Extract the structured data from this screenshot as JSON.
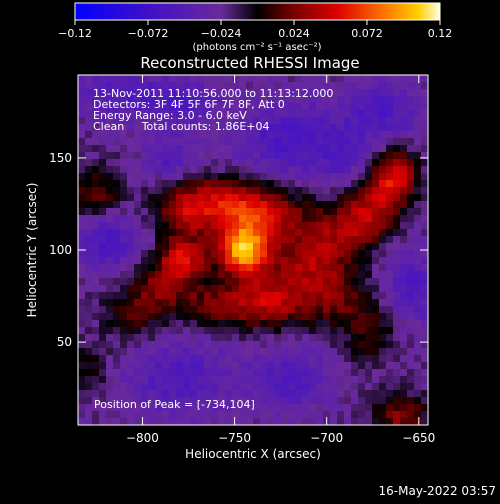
{
  "chart_data": {
    "type": "heatmap",
    "title": "Reconstructed RHESSI Image",
    "xlabel": "Heliocentric X (arcsec)",
    "ylabel": "Heliocentric Y (arcsec)",
    "xlim": [
      -835,
      -645
    ],
    "ylim": [
      5,
      195
    ],
    "xticks": [
      {
        "value": -800,
        "label": "−800"
      },
      {
        "value": -750,
        "label": "−750"
      },
      {
        "value": -700,
        "label": "−700"
      },
      {
        "value": -650,
        "label": "−650"
      }
    ],
    "yticks": [
      {
        "value": 50,
        "label": "50"
      },
      {
        "value": 100,
        "label": "100"
      },
      {
        "value": 150,
        "label": "150"
      }
    ],
    "colorbar": {
      "range": [
        -0.12,
        0.12
      ],
      "ticks": [
        {
          "value": -0.12,
          "label": "−0.12"
        },
        {
          "value": -0.072,
          "label": "−0.072"
        },
        {
          "value": -0.024,
          "label": "−0.024"
        },
        {
          "value": 0.024,
          "label": "0.024"
        },
        {
          "value": 0.072,
          "label": "0.072"
        },
        {
          "value": 0.12,
          "label": "0.12"
        }
      ],
      "label": "(photons cm⁻² s⁻¹ asec⁻²)"
    },
    "annotations": [
      "13-Nov-2011 11:10:56.000 to 11:13:12.000",
      "Detectors: 3F 4F 5F 6F 7F 8F, Att 0",
      "Energy Range: 3.0 - 6.0 keV",
      "Clean     Total counts: 1.86E+04"
    ],
    "peak_label": "Position of Peak = [-734,104]",
    "peak": {
      "x": -734,
      "y": 104
    },
    "sources": [
      {
        "x": -745,
        "y": 100,
        "flux": 0.12,
        "sx": 10,
        "sy": 10
      },
      {
        "x": -778,
        "y": 95,
        "flux": 0.07,
        "sx": 9,
        "sy": 8
      },
      {
        "x": -735,
        "y": 120,
        "flux": 0.06,
        "sx": 16,
        "sy": 10
      },
      {
        "x": -760,
        "y": 128,
        "flux": 0.05,
        "sx": 18,
        "sy": 9
      },
      {
        "x": -775,
        "y": 118,
        "flux": 0.045,
        "sx": 12,
        "sy": 9
      },
      {
        "x": -730,
        "y": 72,
        "flux": 0.06,
        "sx": 15,
        "sy": 10
      },
      {
        "x": -760,
        "y": 70,
        "flux": 0.04,
        "sx": 14,
        "sy": 8
      },
      {
        "x": -790,
        "y": 80,
        "flux": 0.04,
        "sx": 12,
        "sy": 10
      },
      {
        "x": -805,
        "y": 65,
        "flux": 0.03,
        "sx": 12,
        "sy": 10
      },
      {
        "x": -710,
        "y": 95,
        "flux": 0.05,
        "sx": 14,
        "sy": 12
      },
      {
        "x": -690,
        "y": 112,
        "flux": 0.045,
        "sx": 14,
        "sy": 10
      },
      {
        "x": -675,
        "y": 125,
        "flux": 0.05,
        "sx": 10,
        "sy": 12
      },
      {
        "x": -662,
        "y": 140,
        "flux": 0.07,
        "sx": 8,
        "sy": 10
      },
      {
        "x": -695,
        "y": 75,
        "flux": 0.04,
        "sx": 12,
        "sy": 12
      },
      {
        "x": -675,
        "y": 55,
        "flux": 0.03,
        "sx": 10,
        "sy": 12
      },
      {
        "x": -660,
        "y": 10,
        "flux": 0.05,
        "sx": 10,
        "sy": 8
      },
      {
        "x": -825,
        "y": 130,
        "flux": 0.04,
        "sx": 10,
        "sy": 10
      },
      {
        "x": -830,
        "y": 35,
        "flux": 0.025,
        "sx": 8,
        "sy": 10
      },
      {
        "x": -815,
        "y": 185,
        "flux": -0.03,
        "sx": 15,
        "sy": 10
      },
      {
        "x": -780,
        "y": 180,
        "flux": -0.035,
        "sx": 15,
        "sy": 10
      },
      {
        "x": -720,
        "y": 160,
        "flux": -0.04,
        "sx": 20,
        "sy": 15
      },
      {
        "x": -670,
        "y": 175,
        "flux": -0.035,
        "sx": 15,
        "sy": 12
      },
      {
        "x": -820,
        "y": 105,
        "flux": -0.04,
        "sx": 12,
        "sy": 12
      },
      {
        "x": -785,
        "y": 150,
        "flux": -0.03,
        "sx": 10,
        "sy": 8
      },
      {
        "x": -780,
        "y": 30,
        "flux": -0.035,
        "sx": 20,
        "sy": 15
      },
      {
        "x": -720,
        "y": 30,
        "flux": -0.035,
        "sx": 15,
        "sy": 12
      },
      {
        "x": -655,
        "y": 80,
        "flux": -0.035,
        "sx": 10,
        "sy": 15
      },
      {
        "x": -690,
        "y": 150,
        "flux": -0.025,
        "sx": 10,
        "sy": 10
      }
    ],
    "background": -0.022
  },
  "footer_timestamp": "16-May-2022 03:57"
}
